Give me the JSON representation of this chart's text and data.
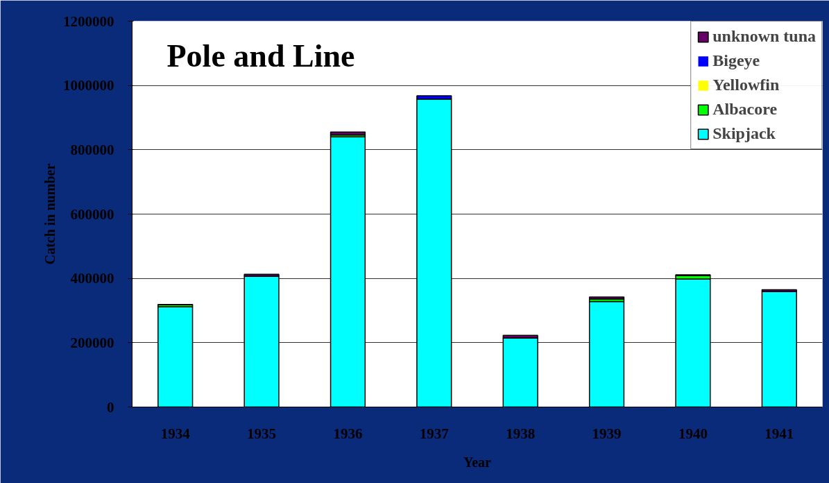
{
  "chart_data": {
    "type": "bar",
    "stacked": true,
    "title": "Pole and Line",
    "xlabel": "Year",
    "ylabel": "Catch in number",
    "categories": [
      "1934",
      "1935",
      "1936",
      "1937",
      "1938",
      "1939",
      "1940",
      "1941"
    ],
    "series": [
      {
        "name": "Skipjack",
        "color": "#00ffff",
        "values": [
          312000,
          407000,
          840000,
          958000,
          215000,
          328000,
          398000,
          359000
        ]
      },
      {
        "name": "Albacore",
        "color": "#00ff00",
        "values": [
          6000,
          null,
          6000,
          0,
          null,
          8000,
          11000,
          0
        ]
      },
      {
        "name": "Yellowfin",
        "color": "#ffff00",
        "values": [
          null,
          0,
          null,
          0,
          0,
          null,
          0,
          0
        ]
      },
      {
        "name": "Bigeye",
        "color": "#0000ff",
        "values": [
          0,
          0,
          0,
          10000,
          0,
          0,
          0,
          0
        ]
      },
      {
        "name": "unknown tuna",
        "color": "#660066",
        "values": [
          1000,
          6000,
          9000,
          0,
          8000,
          6000,
          2000,
          6000
        ]
      }
    ],
    "ylim": [
      0,
      1200000
    ],
    "yticks": [
      0,
      200000,
      400000,
      600000,
      800000,
      1000000,
      1200000
    ],
    "grid": "y",
    "legend": "top right"
  }
}
